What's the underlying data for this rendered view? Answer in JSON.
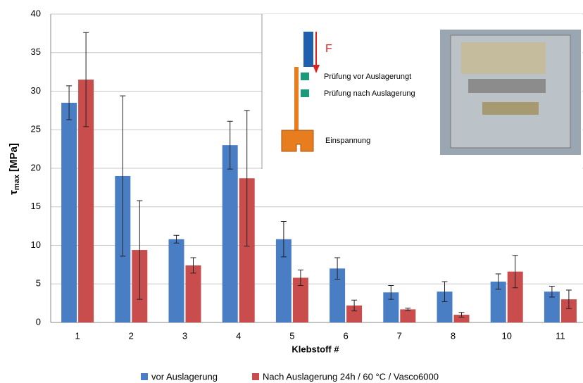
{
  "chart_data": {
    "type": "bar",
    "y_label": {
      "symbol": "τ",
      "sub": "max",
      "unit": "[MPa]"
    },
    "x_label": "Klebstoff #",
    "categories": [
      "1",
      "2",
      "3",
      "4",
      "5",
      "6",
      "7",
      "8",
      "10",
      "11"
    ],
    "series": [
      {
        "name": "vor Auslagerung",
        "color": "#4a7ec4",
        "values": [
          28.5,
          19,
          10.8,
          23,
          10.8,
          7,
          3.9,
          4,
          5.3,
          4
        ],
        "errors": [
          2.2,
          10.4,
          0.5,
          3.1,
          2.3,
          1.4,
          0.9,
          1.3,
          1.0,
          0.7
        ]
      },
      {
        "name": "Nach Auslagerung 24h / 60 °C / Vasco6000",
        "color": "#c94d4d",
        "values": [
          31.5,
          9.4,
          7.4,
          18.7,
          5.8,
          2.2,
          1.7,
          1,
          6.6,
          3
        ],
        "errors": [
          6.1,
          6.4,
          1.0,
          8.8,
          1.0,
          0.7,
          0.15,
          0.3,
          2.1,
          1.2
        ]
      }
    ],
    "ylim": [
      0,
      40
    ],
    "yticks": [
      0,
      5,
      10,
      15,
      20,
      25,
      30,
      35,
      40
    ],
    "grid": true,
    "legend": "bottom",
    "inset": {
      "force": "F",
      "label_before": "Prüfung vor Auslagerungt",
      "label_after": "Prüfung nach Auslagerung",
      "clamp": "Einspannung"
    }
  }
}
